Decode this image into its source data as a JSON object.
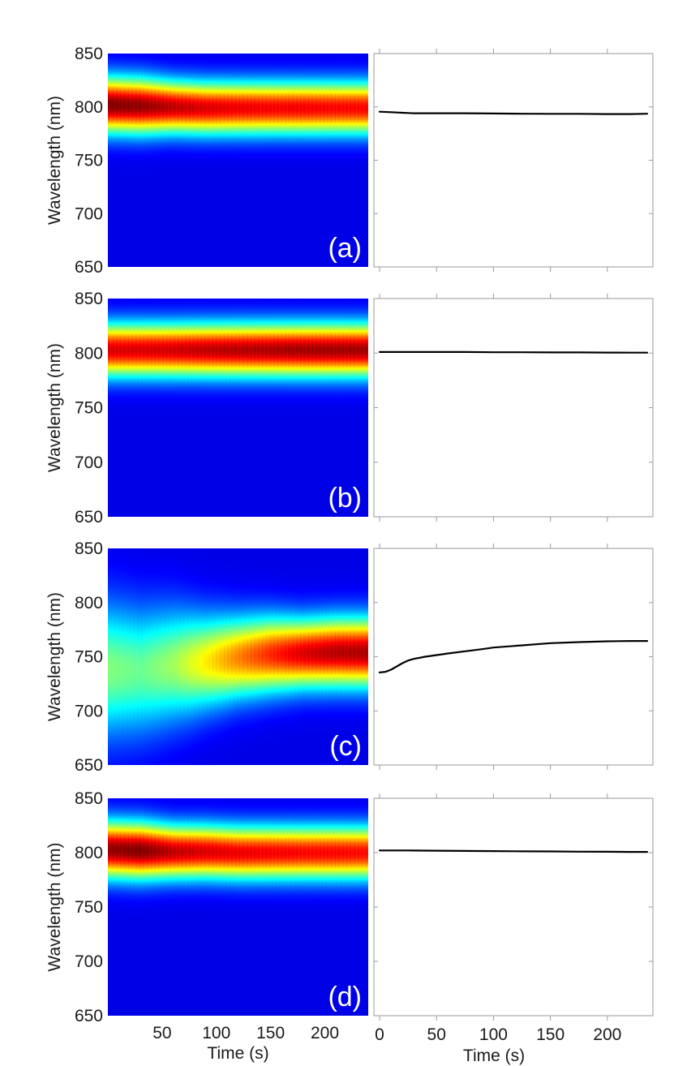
{
  "chart_data": [
    {
      "type": "heatmap",
      "panel_label": "(a)",
      "ylabel": "Wavelength (nm)",
      "xlabel": "",
      "ylim": [
        650,
        850
      ],
      "xlim": [
        0,
        240
      ],
      "y_ticks": [
        650,
        700,
        750,
        800,
        850
      ],
      "x_ticks": [],
      "colormap": "jet",
      "band": {
        "centers": [
          802,
          801,
          800,
          799,
          799,
          799,
          799,
          799,
          799
        ],
        "widths": [
          18,
          18,
          17,
          17,
          17,
          17,
          17,
          17,
          17
        ],
        "intensity": [
          1.0,
          0.98,
          0.93,
          0.9,
          0.88,
          0.87,
          0.87,
          0.86,
          0.86
        ],
        "time": [
          0,
          30,
          60,
          90,
          120,
          150,
          180,
          210,
          240
        ]
      }
    },
    {
      "type": "line",
      "ylim": [
        650,
        850
      ],
      "xlim": [
        -5,
        240
      ],
      "x": [
        0,
        10,
        20,
        30,
        50,
        75,
        100,
        125,
        150,
        175,
        200,
        220,
        235
      ],
      "y": [
        795.5,
        795,
        794.5,
        794,
        794,
        794,
        793.8,
        793.6,
        793.5,
        793.5,
        793.3,
        793.3,
        793.6
      ]
    },
    {
      "type": "heatmap",
      "panel_label": "(b)",
      "ylabel": "Wavelength (nm)",
      "xlabel": "",
      "ylim": [
        650,
        850
      ],
      "xlim": [
        0,
        240
      ],
      "y_ticks": [
        650,
        700,
        750,
        800,
        850
      ],
      "x_ticks": [],
      "colormap": "jet",
      "band": {
        "centers": [
          803,
          803,
          803,
          803,
          803,
          803,
          803,
          803,
          803
        ],
        "widths": [
          17,
          17,
          17,
          17,
          17,
          17,
          17,
          17,
          17
        ],
        "intensity": [
          0.9,
          0.9,
          0.91,
          0.93,
          0.94,
          0.95,
          0.96,
          0.96,
          0.96
        ],
        "time": [
          0,
          30,
          60,
          90,
          120,
          150,
          180,
          210,
          240
        ]
      }
    },
    {
      "type": "line",
      "ylim": [
        650,
        850
      ],
      "xlim": [
        -5,
        240
      ],
      "x": [
        0,
        25,
        50,
        75,
        100,
        125,
        150,
        175,
        200,
        220,
        235
      ],
      "y": [
        801,
        801,
        801,
        801,
        800.8,
        800.8,
        800.6,
        800.6,
        800.5,
        800.4,
        800.4
      ]
    },
    {
      "type": "heatmap",
      "panel_label": "(c)",
      "ylabel": "Wavelength (nm)",
      "xlabel": "",
      "ylim": [
        650,
        850
      ],
      "xlim": [
        0,
        240
      ],
      "y_ticks": [
        650,
        700,
        750,
        800,
        850
      ],
      "x_ticks": [],
      "colormap": "jet",
      "band": {
        "centers": [
          738,
          737,
          742,
          745,
          749,
          752,
          753,
          754,
          754
        ],
        "widths": [
          42,
          40,
          36,
          30,
          26,
          24,
          22,
          22,
          22
        ],
        "intensity": [
          0.45,
          0.42,
          0.48,
          0.6,
          0.72,
          0.82,
          0.9,
          0.94,
          0.95
        ],
        "time": [
          0,
          30,
          60,
          90,
          120,
          150,
          180,
          210,
          240
        ]
      }
    },
    {
      "type": "line",
      "ylim": [
        650,
        850
      ],
      "xlim": [
        -5,
        240
      ],
      "x": [
        0,
        5,
        10,
        15,
        20,
        25,
        30,
        40,
        50,
        60,
        75,
        90,
        100,
        125,
        150,
        175,
        200,
        220,
        235
      ],
      "y": [
        735.5,
        736,
        738,
        741,
        744,
        746.5,
        748,
        750,
        751.5,
        753,
        755,
        757,
        758.5,
        760.5,
        762.5,
        763.5,
        764.2,
        764.5,
        764.5
      ]
    },
    {
      "type": "heatmap",
      "panel_label": "(d)",
      "ylabel": "Wavelength (nm)",
      "xlabel": "Time (s)",
      "ylim": [
        650,
        850
      ],
      "xlim": [
        0,
        240
      ],
      "y_ticks": [
        650,
        700,
        750,
        800,
        850
      ],
      "x_ticks": [
        50,
        100,
        150,
        200
      ],
      "colormap": "jet",
      "band": {
        "centers": [
          803,
          802,
          801,
          801,
          800,
          800,
          800,
          800,
          800
        ],
        "widths": [
          18,
          18,
          17,
          17,
          17,
          17,
          17,
          17,
          17
        ],
        "intensity": [
          0.98,
          1.0,
          0.93,
          0.9,
          0.88,
          0.87,
          0.86,
          0.86,
          0.85
        ],
        "time": [
          0,
          30,
          60,
          90,
          120,
          150,
          180,
          210,
          240
        ]
      }
    },
    {
      "type": "line",
      "xlabel": "Time (s)",
      "ylim": [
        650,
        850
      ],
      "xlim": [
        -5,
        240
      ],
      "x_ticks": [
        0,
        50,
        100,
        150,
        200
      ],
      "x": [
        0,
        25,
        50,
        75,
        100,
        125,
        150,
        175,
        200,
        220,
        235
      ],
      "y": [
        802,
        802,
        801.8,
        801.6,
        801.4,
        801.2,
        801.1,
        800.9,
        800.8,
        800.7,
        800.7
      ]
    }
  ]
}
